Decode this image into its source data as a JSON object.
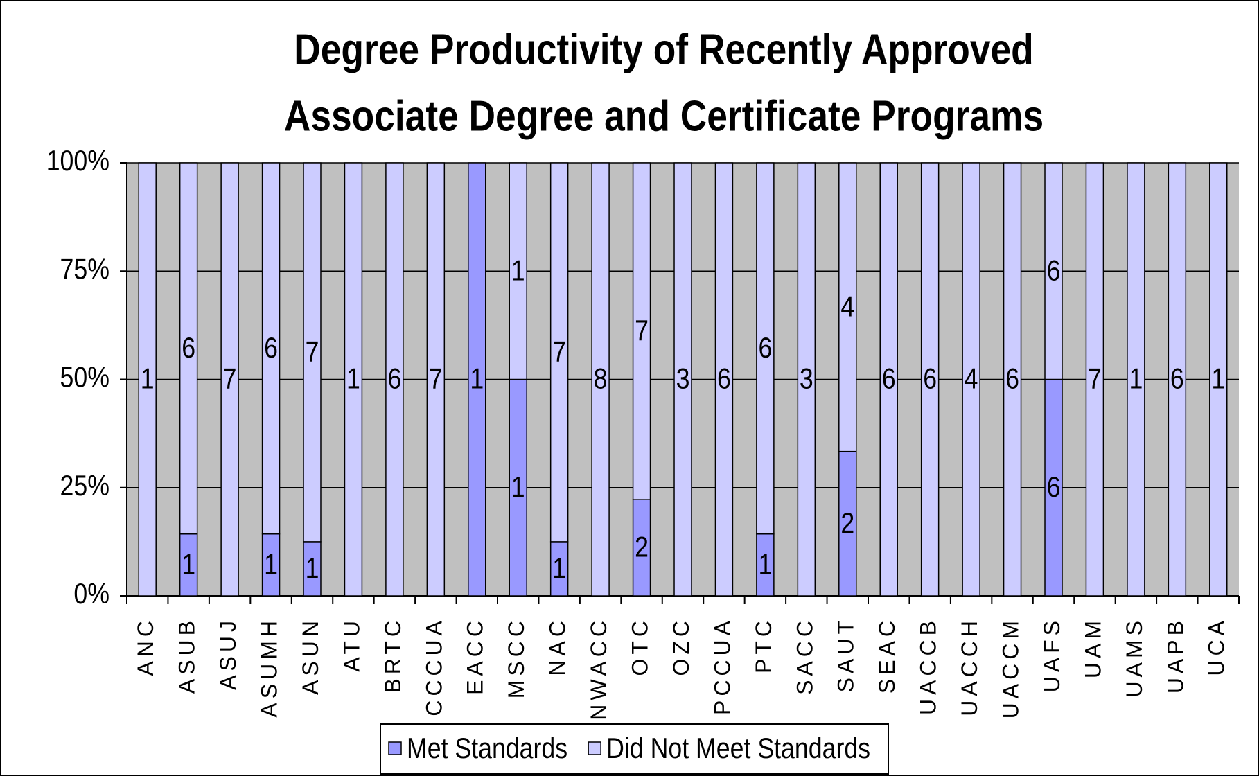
{
  "chart_data": {
    "type": "bar",
    "stacking": "percent",
    "title": [
      "Degree Productivity of Recently Approved",
      "Associate Degree and Certificate Programs"
    ],
    "categories": [
      "ANC",
      "ASUB",
      "ASUJ",
      "ASUMH",
      "ASUN",
      "ATU",
      "BRTC",
      "CCCUA",
      "EACC",
      "MSCC",
      "NAC",
      "NWACC",
      "OTC",
      "OZC",
      "PCCUA",
      "PTC",
      "SACC",
      "SAUT",
      "SEAC",
      "UACCB",
      "UACCH",
      "UACCM",
      "UAFS",
      "UAM",
      "UAMS",
      "UAPB",
      "UCA"
    ],
    "series": [
      {
        "name": "Met Standards",
        "color": "#9999ff",
        "values": [
          0,
          1,
          0,
          1,
          1,
          0,
          0,
          0,
          1,
          1,
          1,
          0,
          2,
          0,
          0,
          1,
          0,
          2,
          0,
          0,
          0,
          0,
          6,
          0,
          0,
          0,
          0
        ]
      },
      {
        "name": "Did Not Meet Standards",
        "color": "#ccccff",
        "values": [
          1,
          6,
          7,
          6,
          7,
          1,
          6,
          7,
          0,
          1,
          7,
          8,
          7,
          3,
          6,
          6,
          3,
          4,
          6,
          6,
          4,
          6,
          6,
          7,
          1,
          6,
          1
        ]
      }
    ],
    "ylim": [
      0,
      100
    ],
    "yticks": [
      {
        "value": 0,
        "label": "0%"
      },
      {
        "value": 25,
        "label": "25%"
      },
      {
        "value": 50,
        "label": "50%"
      },
      {
        "value": 75,
        "label": "75%"
      },
      {
        "value": 100,
        "label": "100%"
      }
    ],
    "grid": true,
    "legend": "bottom",
    "plot_background": "#c0c0c0"
  }
}
